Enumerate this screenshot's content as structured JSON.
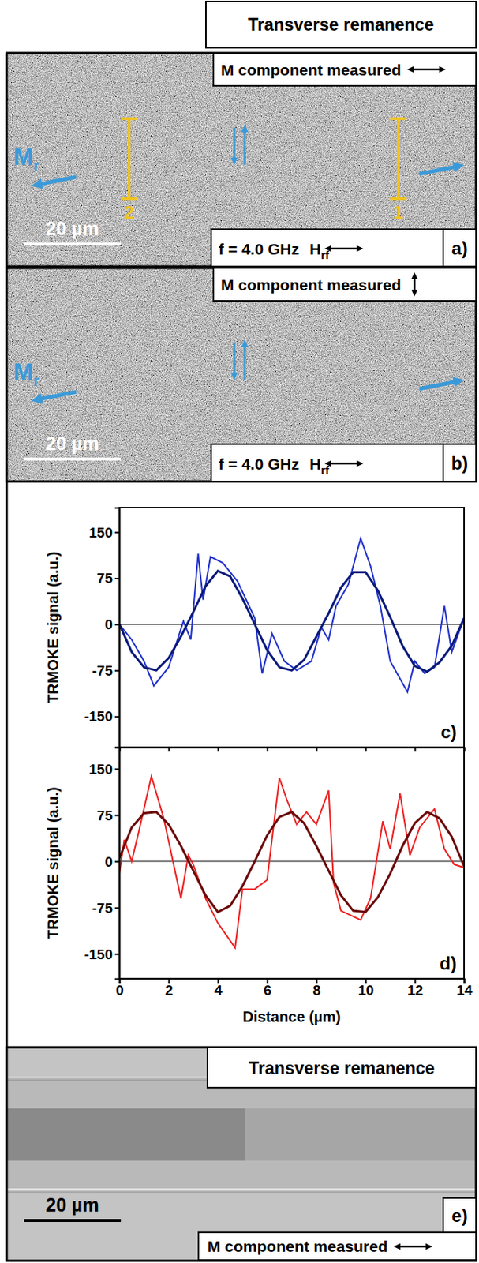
{
  "header": {
    "title": "Transverse remanence"
  },
  "panels": [
    {
      "label": "a)",
      "component_text": "M component measured",
      "component_direction": "horizontal",
      "magnetization_label": "M",
      "magnetization_subscript": "r",
      "markers": [
        "2",
        "1"
      ],
      "scale_bar": "20 µm",
      "frequency_text": "f = 4.0 GHz",
      "field_label": "H",
      "field_subscript": "rf"
    },
    {
      "label": "b)",
      "component_text": "M component measured",
      "component_direction": "vertical",
      "magnetization_label": "M",
      "magnetization_subscript": "r",
      "scale_bar": "20 µm",
      "frequency_text": "f = 4.0 GHz",
      "field_label": "H",
      "field_subscript": "rf"
    },
    {
      "label": "e)",
      "title": "Transverse remanence",
      "component_text": "M component measured",
      "component_direction": "horizontal",
      "scale_bar": "20 µm"
    }
  ],
  "chart_data": [
    {
      "type": "line",
      "label": "c)",
      "ylabel": "TRMOKE signal (a.u.)",
      "xlim": [
        0,
        14
      ],
      "xticks": [
        0,
        2,
        4,
        6,
        8,
        10,
        12,
        14
      ],
      "ylim": [
        -200,
        190
      ],
      "yticks": [
        -150,
        -75,
        0,
        75,
        150
      ],
      "tick_labels": "y",
      "hline": 0,
      "series": [
        {
          "color": "#2233cc",
          "x": [
            0,
            0.5,
            1,
            1.4,
            2,
            2.6,
            2.9,
            3.2,
            3.4,
            3.7,
            4.2,
            4.8,
            5.5,
            5.8,
            6.2,
            6.7,
            7.2,
            7.8,
            8.2,
            8.5,
            8.8,
            9.3,
            9.8,
            10.2,
            10.6,
            11,
            11.7,
            12,
            12.4,
            12.8,
            13.2,
            13.5,
            14
          ],
          "values": [
            0,
            -25,
            -60,
            -100,
            -70,
            5,
            -25,
            115,
            40,
            110,
            100,
            70,
            10,
            -80,
            -15,
            -60,
            -75,
            -60,
            -5,
            -25,
            30,
            65,
            140,
            95,
            30,
            -60,
            -110,
            -60,
            -80,
            -70,
            30,
            -45,
            10
          ]
        },
        {
          "color": "#0b1a7a",
          "x": [
            0,
            0.5,
            1,
            1.5,
            2,
            2.5,
            3,
            3.5,
            4,
            4.5,
            5,
            5.5,
            6,
            6.5,
            7,
            7.5,
            8,
            8.5,
            9,
            9.5,
            10,
            10.5,
            11,
            11.5,
            12,
            12.5,
            13,
            13.5,
            14
          ],
          "values": [
            0,
            -45,
            -70,
            -75,
            -55,
            -20,
            20,
            62,
            87,
            78,
            42,
            0,
            -42,
            -70,
            -75,
            -58,
            -20,
            18,
            60,
            85,
            85,
            55,
            12,
            -35,
            -68,
            -77,
            -62,
            -35,
            10
          ]
        }
      ]
    },
    {
      "type": "line",
      "label": "d)",
      "ylabel": "TRMOKE signal (a.u.)",
      "xlabel": "Distance (µm)",
      "xlim": [
        0,
        14
      ],
      "xticks": [
        0,
        2,
        4,
        6,
        8,
        10,
        12,
        14
      ],
      "ylim": [
        -190,
        185
      ],
      "yticks": [
        -150,
        -75,
        0,
        75,
        150
      ],
      "tick_labels": true,
      "hline": 0,
      "series": [
        {
          "color": "#ee2222",
          "x": [
            0,
            0.2,
            0.5,
            0.8,
            1.3,
            1.8,
            2.5,
            2.8,
            3,
            3.5,
            4,
            4.7,
            5,
            5.5,
            6,
            6.5,
            6.8,
            7.2,
            7.6,
            8,
            8.5,
            8.7,
            9,
            9.8,
            10.2,
            10.7,
            11,
            11.4,
            11.8,
            12.2,
            12.8,
            13.2,
            13.6,
            14
          ],
          "values": [
            -20,
            35,
            0,
            50,
            138,
            70,
            -60,
            10,
            -5,
            -60,
            -100,
            -140,
            -45,
            -45,
            -30,
            135,
            100,
            60,
            80,
            60,
            115,
            -35,
            -80,
            -95,
            -60,
            65,
            20,
            110,
            10,
            55,
            85,
            20,
            -5,
            -10
          ]
        },
        {
          "color": "#6b0a0a",
          "x": [
            0,
            0.5,
            1,
            1.5,
            2,
            2.5,
            3,
            3.5,
            4,
            4.5,
            5,
            5.5,
            6,
            6.5,
            7,
            7.5,
            8,
            8.5,
            9,
            9.5,
            10,
            10.5,
            11,
            11.5,
            12,
            12.5,
            13,
            13.5,
            14
          ],
          "values": [
            5,
            55,
            78,
            80,
            60,
            25,
            -15,
            -55,
            -82,
            -72,
            -40,
            0,
            42,
            72,
            80,
            62,
            25,
            -15,
            -55,
            -80,
            -82,
            -58,
            -20,
            25,
            62,
            80,
            70,
            40,
            -8
          ]
        }
      ]
    }
  ]
}
